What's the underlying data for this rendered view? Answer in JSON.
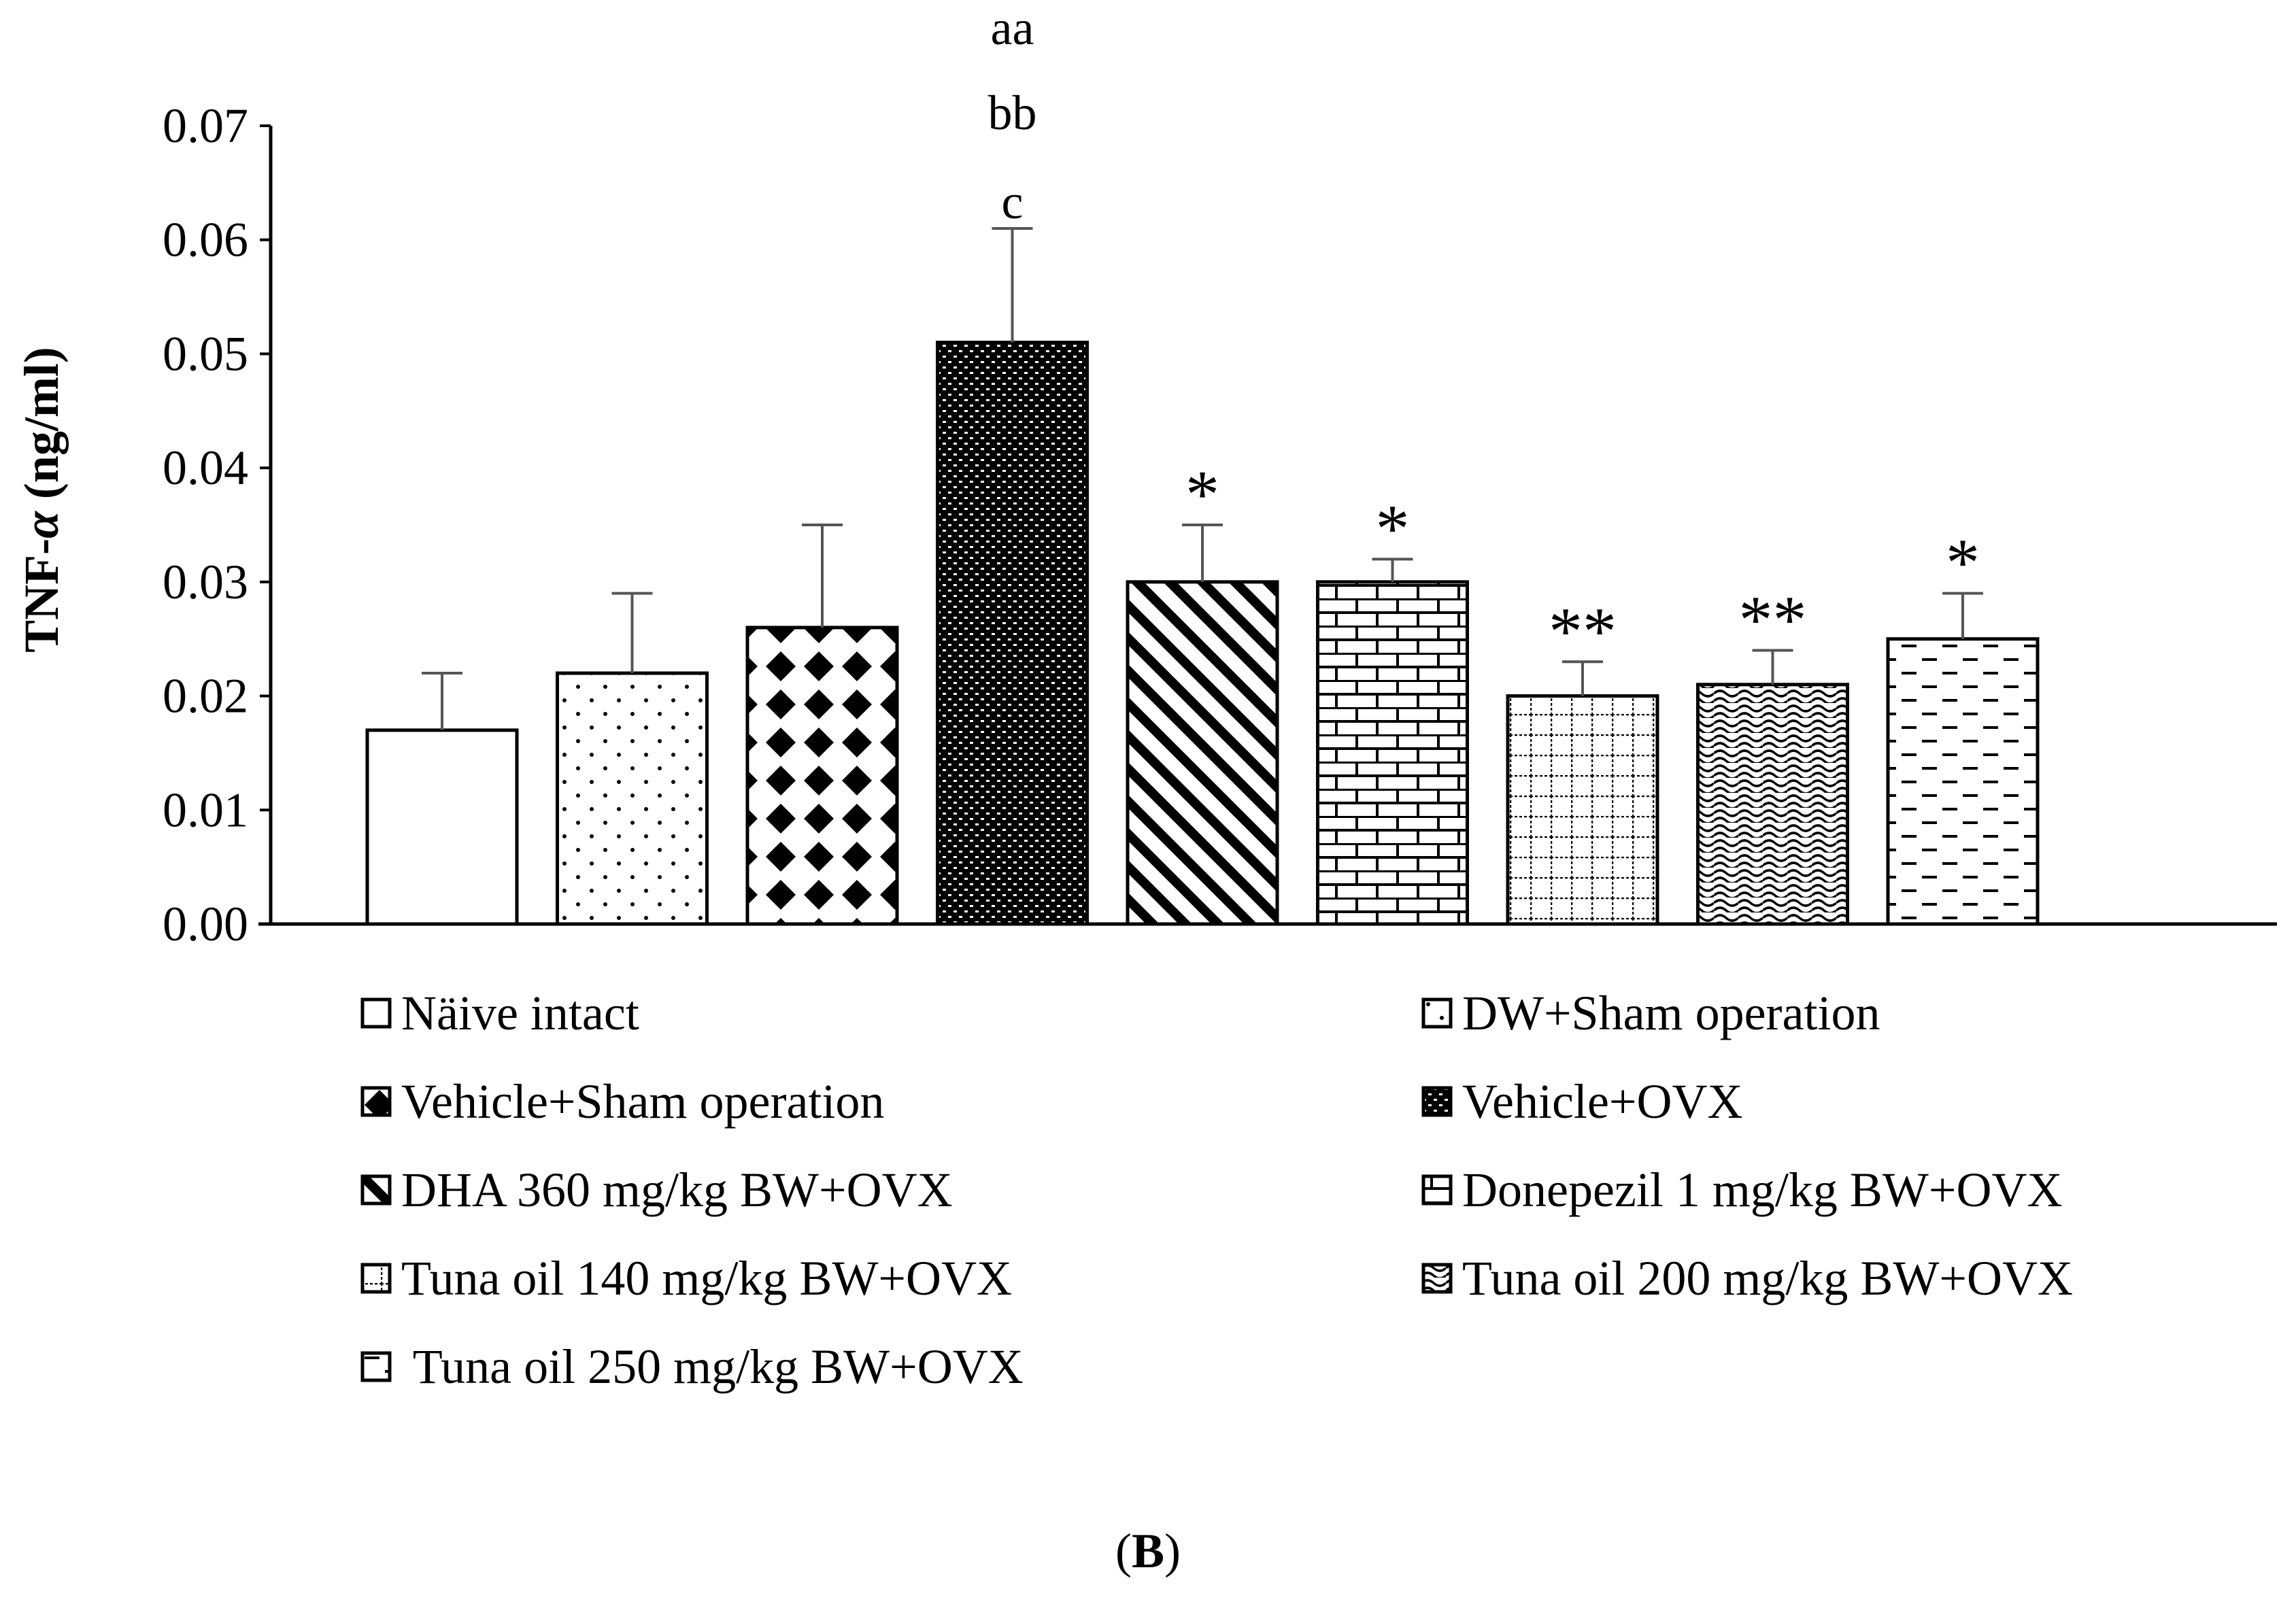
{
  "panel_label": "B",
  "chart_data": {
    "type": "bar",
    "title": "",
    "xlabel": "",
    "ylabel": "TNF-α (ng/ml)",
    "ylabel_parts": {
      "main": "TNF-",
      "greek": "α",
      "unit": " (ng/ml)"
    },
    "ylim": [
      0,
      0.07
    ],
    "yticks": [
      "0.00",
      "0.01",
      "0.02",
      "0.03",
      "0.04",
      "0.05",
      "0.06",
      "0.07"
    ],
    "categories": [
      "Näive intact",
      "DW+Sham operation",
      "Vehicle+Sham operation",
      "Vehicle+OVX",
      "DHA 360 mg/kg BW+OVX",
      "Donepezil 1 mg/kg BW+OVX",
      "Tuna oil 140 mg/kg BW+OVX",
      "Tuna oil 200 mg/kg BW+OVX",
      " Tuna oil 250 mg/kg BW+OVX"
    ],
    "values": [
      0.017,
      0.022,
      0.026,
      0.051,
      0.03,
      0.03,
      0.02,
      0.021,
      0.025
    ],
    "errors": [
      0.005,
      0.007,
      0.009,
      0.01,
      0.005,
      0.002,
      0.003,
      0.003,
      0.004
    ],
    "patterns": [
      "white",
      "dots",
      "diamonds",
      "dense-checker",
      "diagonal",
      "bricks",
      "grid",
      "waves",
      "dashes"
    ],
    "annotations": [
      "",
      "",
      "",
      "c",
      "*",
      "*",
      "**",
      "**",
      "*"
    ],
    "top_annotations": [
      "aa",
      "bb"
    ],
    "legend": {
      "columns": 2,
      "placement": "bottom"
    }
  }
}
